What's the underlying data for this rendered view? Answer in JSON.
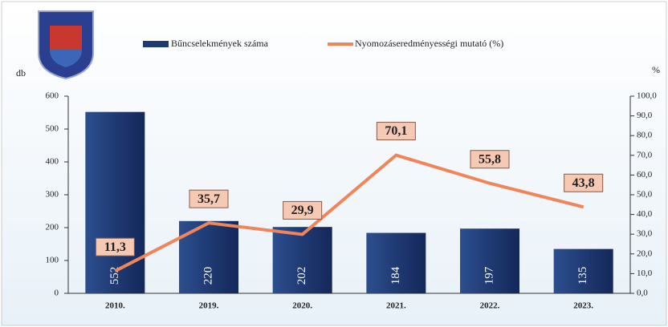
{
  "chart_data": {
    "type": "bar",
    "categories": [
      "2010.",
      "2019.",
      "2020.",
      "2021.",
      "2022.",
      "2023."
    ],
    "series": [
      {
        "name": "Bűncselekmények száma",
        "color": "#1f3a73",
        "values": [
          552,
          220,
          202,
          184,
          197,
          135
        ]
      },
      {
        "name": "Nyomozáseredményességi mutató (%)",
        "color": "#f0855a",
        "type": "line",
        "axis": "y2",
        "values": [
          11.3,
          35.7,
          29.9,
          70.1,
          55.8,
          43.8
        ],
        "value_labels": [
          "11,3",
          "35,7",
          "29,9",
          "70,1",
          "55,8",
          "43,8"
        ]
      }
    ],
    "ylabel": "db",
    "y2label": "%",
    "ylim": [
      0,
      600
    ],
    "yticks": [
      0,
      100,
      200,
      300,
      400,
      500,
      600
    ],
    "y2lim": [
      0,
      100
    ],
    "y2ticks": [
      {
        "value": 0,
        "label": "0,0"
      },
      {
        "value": 10,
        "label": "10,0"
      },
      {
        "value": 20,
        "label": "20,0"
      },
      {
        "value": 30,
        "label": "30,0"
      },
      {
        "value": 40,
        "label": "40,0"
      },
      {
        "value": 50,
        "label": "50,0"
      },
      {
        "value": 60,
        "label": "60,0"
      },
      {
        "value": 70,
        "label": "70,0"
      },
      {
        "value": 80,
        "label": "80,0"
      },
      {
        "value": 90,
        "label": "90,0"
      },
      {
        "value": 100,
        "label": "100,0"
      }
    ]
  }
}
